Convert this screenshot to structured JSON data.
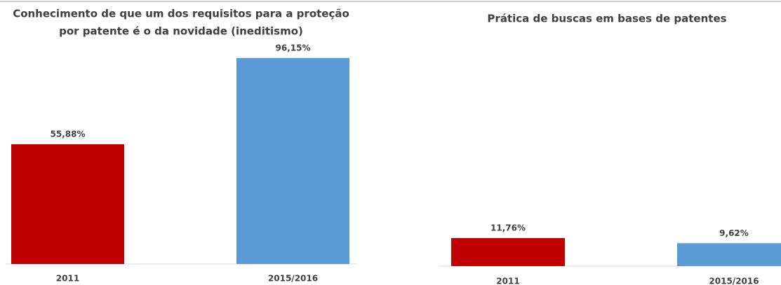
{
  "chart_data": [
    {
      "type": "bar",
      "title": [
        "Conhecimento de que um dos requisitos para a proteção",
        "por patente é o da novidade (ineditismo)"
      ],
      "categories": [
        "2011",
        "2015/2016"
      ],
      "values": [
        55.88,
        96.15
      ],
      "value_labels": [
        "55,88%",
        "96,15%"
      ],
      "colors": [
        "#c00000",
        "#5b9bd5"
      ],
      "ylim": [
        0,
        100
      ]
    },
    {
      "type": "bar",
      "title": [
        "Prática de buscas em bases de patentes"
      ],
      "categories": [
        "2011",
        "2015/2016"
      ],
      "values": [
        11.76,
        9.62
      ],
      "value_labels": [
        "11,76%",
        "9,62%"
      ],
      "colors": [
        "#c00000",
        "#5b9bd5"
      ],
      "ylim": [
        0,
        100
      ]
    }
  ]
}
